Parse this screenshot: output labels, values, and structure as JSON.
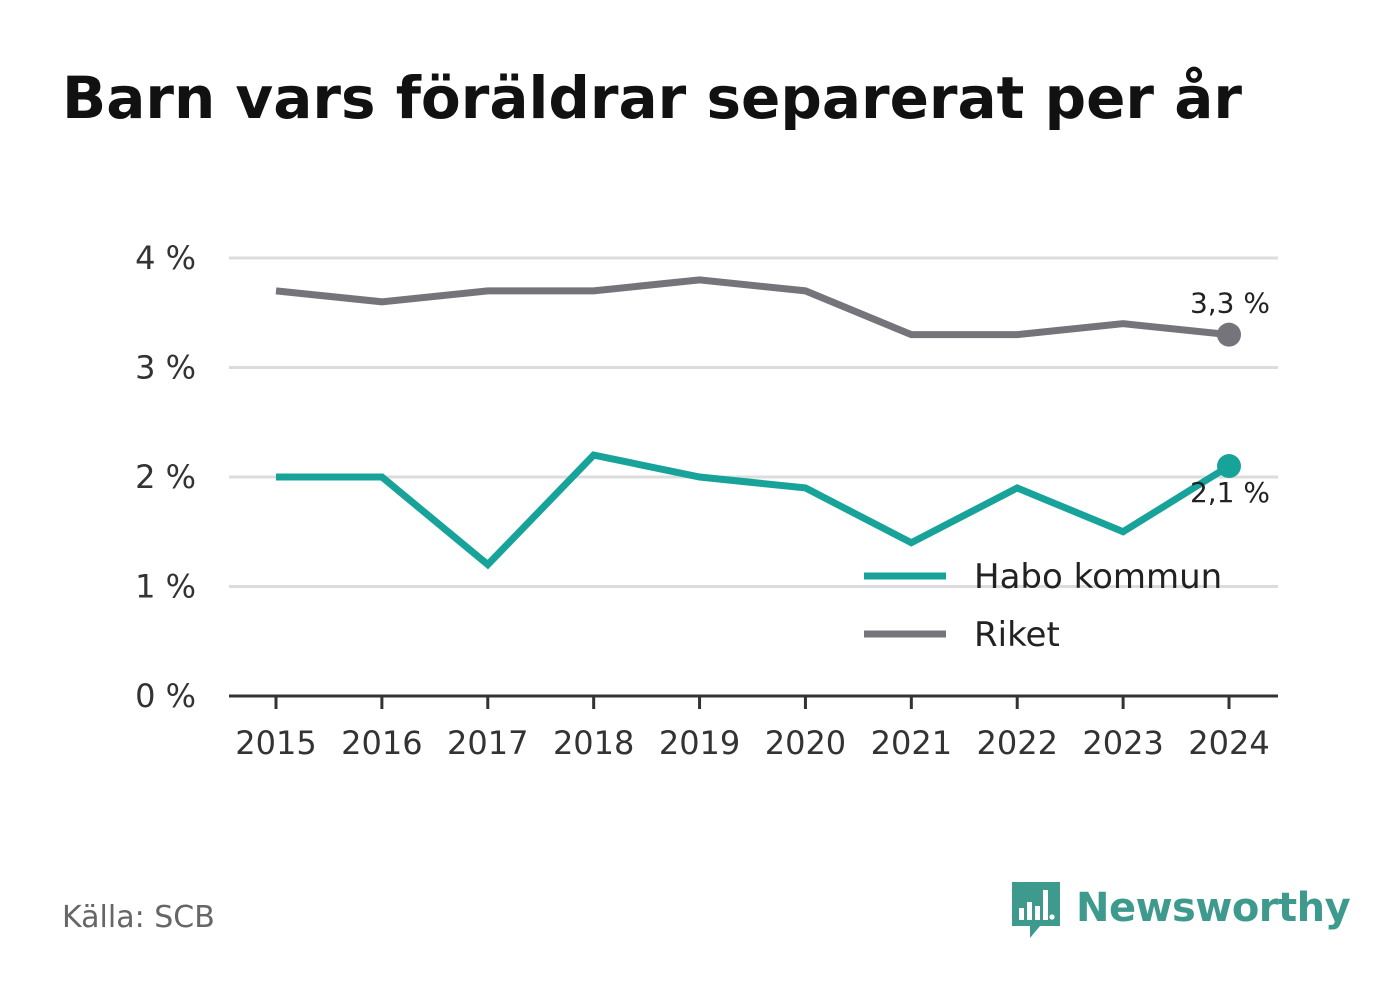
{
  "chart_data": {
    "type": "line",
    "title": "Barn vars föräldrar separerat per år",
    "categories": [
      "2015",
      "2016",
      "2017",
      "2018",
      "2019",
      "2020",
      "2021",
      "2022",
      "2023",
      "2024"
    ],
    "ylim": [
      0,
      4
    ],
    "yticks": [
      0,
      1,
      2,
      3,
      4
    ],
    "ytick_labels": [
      "0 %",
      "1 %",
      "2 %",
      "3 %",
      "4 %"
    ],
    "grid": true,
    "legend_position": "bottom-right",
    "series": [
      {
        "name": "Habo kommun",
        "color": "#17a39a",
        "values": [
          2.0,
          2.0,
          1.2,
          2.2,
          2.0,
          1.9,
          1.4,
          1.9,
          1.5,
          2.1
        ],
        "end_label": "2,1 %"
      },
      {
        "name": "Riket",
        "color": "#75747b",
        "values": [
          3.7,
          3.6,
          3.7,
          3.7,
          3.8,
          3.7,
          3.3,
          3.3,
          3.4,
          3.3
        ],
        "end_label": "3,3 %"
      }
    ]
  },
  "footer": {
    "source": "Källa: SCB",
    "brand": "Newsworthy",
    "brand_color": "#3f9a8e",
    "brand_icon": "bar-chart-speech-bubble-icon"
  }
}
